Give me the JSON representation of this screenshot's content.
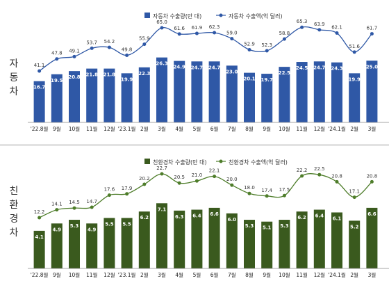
{
  "chart_data": [
    {
      "type": "bar+line",
      "row_label": "자동차",
      "categories": [
        "'22.8월",
        "9월",
        "10월",
        "11월",
        "12월",
        "'23.1월",
        "2월",
        "3월",
        "4월",
        "5월",
        "6월",
        "7월",
        "8월",
        "9월",
        "10월",
        "11월",
        "12월",
        "'24.1월",
        "2월",
        "3월"
      ],
      "series": [
        {
          "name": "자동차 수출량(만 대)",
          "type": "bar",
          "color": "#2f58a6",
          "values": [
            16.7,
            19.5,
            20.8,
            21.8,
            21.8,
            19.9,
            22.3,
            26.3,
            24.9,
            24.7,
            24.7,
            23.0,
            20.1,
            19.7,
            22.5,
            24.5,
            24.7,
            24.3,
            19.9,
            25.0
          ]
        },
        {
          "name": "자동차 수출액(억 달러)",
          "type": "line",
          "color": "#2f58a6",
          "values": [
            41.1,
            47.8,
            49.1,
            53.7,
            54.2,
            49.8,
            55.9,
            65.0,
            61.6,
            61.9,
            62.3,
            59.0,
            52.9,
            52.3,
            58.8,
            65.3,
            63.9,
            62.1,
            51.6,
            61.7
          ]
        }
      ],
      "legend_position": "top-right"
    },
    {
      "type": "bar+line",
      "row_label": "친환경차",
      "categories": [
        "'22.8월",
        "9월",
        "10월",
        "11월",
        "12월",
        "'23.1월",
        "2월",
        "3월",
        "4월",
        "5월",
        "6월",
        "7월",
        "8월",
        "9월",
        "10월",
        "11월",
        "12월",
        "'24.1월",
        "2월",
        "3월"
      ],
      "series": [
        {
          "name": "친환경차 수출량(만 대)",
          "type": "bar",
          "color": "#3a5a1e",
          "values": [
            4.1,
            4.9,
            5.3,
            4.9,
            5.5,
            5.5,
            6.2,
            7.1,
            6.3,
            6.4,
            6.6,
            6.0,
            5.3,
            5.1,
            5.3,
            6.2,
            6.4,
            6.1,
            5.2,
            6.6
          ]
        },
        {
          "name": "친환경차 수출액(억 달러)",
          "type": "line",
          "color": "#4e7d2a",
          "values": [
            12.2,
            14.1,
            14.5,
            14.7,
            17.6,
            17.9,
            20.2,
            22.7,
            20.5,
            21.0,
            22.1,
            20.0,
            18.0,
            17.4,
            17.5,
            22.2,
            22.5,
            20.8,
            17.1,
            20.8
          ]
        }
      ],
      "legend_position": "top-right"
    }
  ]
}
